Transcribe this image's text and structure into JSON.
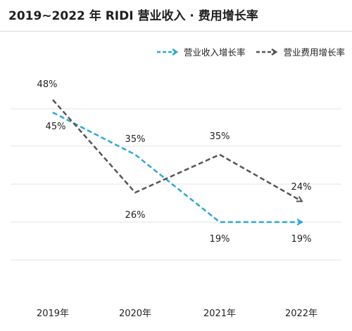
{
  "chart_data": {
    "type": "line",
    "title": "2019~2022 年 RIDI 营业收入 · 费用增长率",
    "categories": [
      "2019年",
      "2020年",
      "2021年",
      "2022年"
    ],
    "series": [
      {
        "name": "营业收入增长率",
        "values": [
          45,
          35,
          19,
          19
        ],
        "labels": [
          "45%",
          "35%",
          "19%",
          "19%"
        ],
        "color": "#29a9d6",
        "style": "dashed",
        "marker": "arrow-end"
      },
      {
        "name": "营业费用增长率",
        "values": [
          48,
          26,
          35,
          24
        ],
        "labels": [
          "48%",
          "26%",
          "35%",
          "24%"
        ],
        "color": "#555555",
        "style": "dashed",
        "marker": "arrow-end"
      }
    ],
    "ylim": [
      10,
      55
    ],
    "grid": true,
    "legend": "top-right",
    "xlabel": "",
    "ylabel": ""
  }
}
